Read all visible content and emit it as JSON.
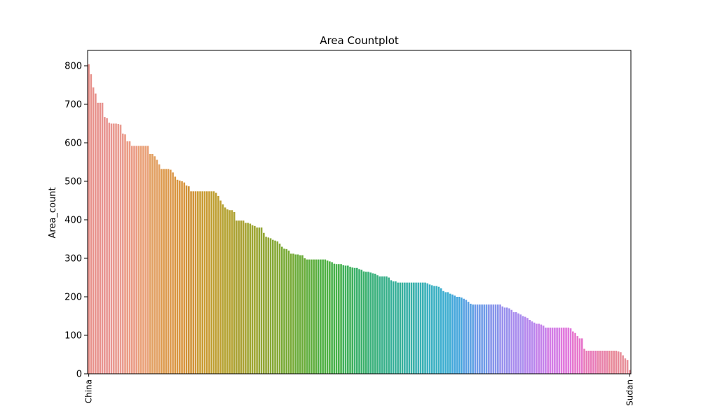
{
  "chart_data": {
    "type": "bar",
    "title": "Area Countplot",
    "xlabel": "",
    "ylabel": "Area_count",
    "ylim": [
      0,
      840
    ],
    "yticks": [
      0,
      100,
      200,
      300,
      400,
      500,
      600,
      700,
      800
    ],
    "grid": false,
    "legend": "none",
    "x_tick_labels_first": "China",
    "x_tick_labels_last": "Sudan",
    "values": [
      804,
      778,
      744,
      728,
      704,
      704,
      704,
      667,
      664,
      652,
      650,
      650,
      650,
      649,
      647,
      624,
      622,
      604,
      604,
      592,
      592,
      592,
      592,
      592,
      592,
      592,
      592,
      571,
      571,
      565,
      556,
      544,
      532,
      532,
      532,
      532,
      530,
      523,
      512,
      504,
      502,
      500,
      497,
      489,
      487,
      474,
      474,
      474,
      474,
      474,
      474,
      474,
      474,
      474,
      474,
      474,
      470,
      462,
      450,
      440,
      432,
      427,
      425,
      425,
      420,
      398,
      398,
      398,
      398,
      392,
      392,
      390,
      386,
      384,
      380,
      380,
      380,
      366,
      356,
      354,
      352,
      348,
      346,
      344,
      338,
      330,
      325,
      324,
      320,
      312,
      312,
      310,
      310,
      308,
      308,
      300,
      297,
      297,
      297,
      297,
      297,
      297,
      297,
      297,
      297,
      294,
      292,
      290,
      286,
      285,
      285,
      285,
      282,
      281,
      281,
      278,
      276,
      275,
      275,
      272,
      270,
      266,
      265,
      265,
      263,
      261,
      260,
      256,
      253,
      253,
      253,
      253,
      250,
      243,
      240,
      240,
      237,
      237,
      237,
      237,
      237,
      237,
      237,
      237,
      237,
      237,
      237,
      237,
      237,
      235,
      232,
      230,
      228,
      228,
      226,
      222,
      215,
      212,
      212,
      208,
      206,
      203,
      200,
      200,
      198,
      195,
      192,
      187,
      182,
      180,
      180,
      180,
      180,
      180,
      180,
      180,
      180,
      180,
      180,
      180,
      180,
      180,
      175,
      172,
      172,
      170,
      166,
      160,
      160,
      157,
      154,
      150,
      148,
      145,
      140,
      136,
      133,
      130,
      130,
      128,
      125,
      120,
      120,
      120,
      120,
      120,
      120,
      120,
      120,
      120,
      120,
      120,
      118,
      110,
      106,
      98,
      92,
      92,
      65,
      60,
      60,
      60,
      60,
      60,
      60,
      60,
      60,
      60,
      60,
      60,
      60,
      60,
      60,
      58,
      56,
      48,
      40,
      36,
      10
    ],
    "colors": [
      "#e8928c",
      "#e89490",
      "#e99a8f",
      "#ea9a84",
      "#e9a077",
      "#e2a062",
      "#dd9a4d",
      "#d9953f",
      "#d09236",
      "#c99c33",
      "#bfa033",
      "#b4a230",
      "#a9a031",
      "#9ea531",
      "#92a533",
      "#86a836",
      "#78aa36",
      "#6aab38",
      "#5ead3c",
      "#4fb042",
      "#45b049",
      "#3fb05a",
      "#3ab06b",
      "#39b07b",
      "#38b08a",
      "#37b099",
      "#36b0a6",
      "#38b0b4",
      "#3ab0c2",
      "#3cadd0",
      "#44a6dc",
      "#5aa0e3",
      "#6e9ae8",
      "#8593ea",
      "#9990ed",
      "#a98cee",
      "#b586ed",
      "#c480ea",
      "#d37be5",
      "#e076dc",
      "#e778cc",
      "#e87bb8",
      "#e882a9",
      "#e88999",
      "#e8909a"
    ]
  }
}
